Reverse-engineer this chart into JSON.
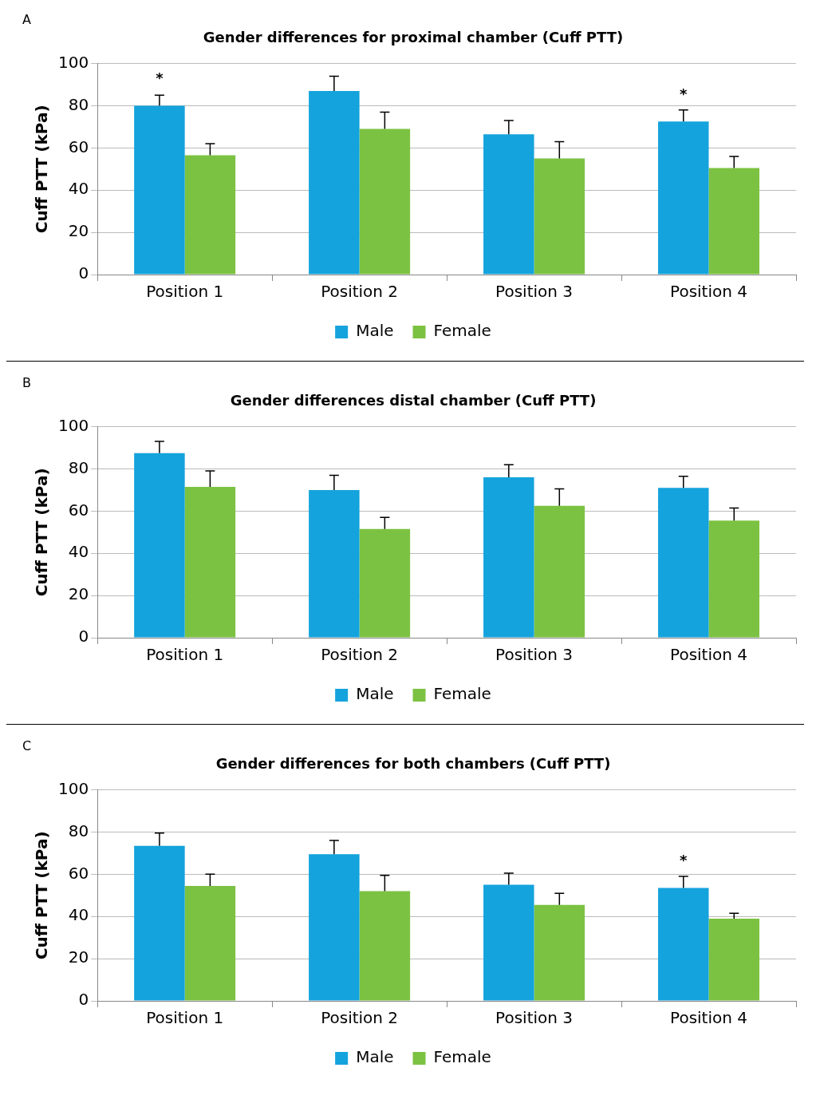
{
  "chart_data": [
    {
      "type": "bar",
      "title": "Gender differences for proximal chamber (Cuff PTT)",
      "ylabel": "Cuff PTT (kPa)",
      "categories": [
        "Position 1",
        "Position 2",
        "Position 3",
        "Position 4"
      ],
      "series": [
        {
          "name": "Male",
          "color": "#14a3dc",
          "values": [
            80,
            87,
            66.5,
            72.5
          ],
          "errors": [
            [
              80,
              85
            ],
            [
              87,
              94
            ],
            [
              66.5,
              73
            ],
            [
              72.5,
              78
            ]
          ]
        },
        {
          "name": "Female",
          "color": "#7cc242",
          "values": [
            56.5,
            69,
            55,
            50.5
          ],
          "errors": [
            [
              56.5,
              62
            ],
            [
              69,
              77
            ],
            [
              55,
              63
            ],
            [
              50.5,
              56
            ]
          ]
        }
      ],
      "ylim": [
        0,
        100
      ],
      "yticks": [
        0,
        20,
        40,
        60,
        80,
        100
      ],
      "grid": "y",
      "legend": "bottom",
      "annotations": [
        "A",
        {
          "text": "*",
          "x": "Position 1",
          "y": 80
        },
        {
          "text": "*",
          "x": "Position 4",
          "y": 72.5
        }
      ]
    },
    {
      "type": "bar",
      "title": "Gender differences distal chamber (Cuff PTT)",
      "ylabel": "Cuff PTT (kPa)",
      "categories": [
        "Position 1",
        "Position 2",
        "Position 3",
        "Position 4"
      ],
      "series": [
        {
          "name": "Male",
          "color": "#14a3dc",
          "values": [
            87.5,
            70,
            76,
            71
          ],
          "errors": [
            [
              87.5,
              93
            ],
            [
              70,
              77
            ],
            [
              76,
              82
            ],
            [
              71,
              76.5
            ]
          ]
        },
        {
          "name": "Female",
          "color": "#7cc242",
          "values": [
            71.5,
            51.5,
            62.5,
            55.5
          ],
          "errors": [
            [
              71.5,
              79
            ],
            [
              51.5,
              57
            ],
            [
              62.5,
              70.5
            ],
            [
              55.5,
              61.5
            ]
          ]
        }
      ],
      "ylim": [
        0,
        100
      ],
      "yticks": [
        0,
        20,
        40,
        60,
        80,
        100
      ],
      "grid": "y",
      "legend": "bottom",
      "annotations": [
        "B"
      ]
    },
    {
      "type": "bar",
      "title": "Gender differences for both chambers (Cuff PTT)",
      "ylabel": "Cuff PTT (kPa)",
      "categories": [
        "Position 1",
        "Position 2",
        "Position 3",
        "Position 4"
      ],
      "series": [
        {
          "name": "Male",
          "color": "#14a3dc",
          "values": [
            73.5,
            69.5,
            55,
            53.5
          ],
          "errors": [
            [
              73.5,
              79.5
            ],
            [
              69.5,
              76
            ],
            [
              55,
              60.5
            ],
            [
              53.5,
              59
            ]
          ]
        },
        {
          "name": "Female",
          "color": "#7cc242",
          "values": [
            54.5,
            52,
            45.5,
            39
          ],
          "errors": [
            [
              54.5,
              60
            ],
            [
              52,
              59.5
            ],
            [
              45.5,
              51
            ],
            [
              39,
              41.5
            ]
          ]
        }
      ],
      "ylim": [
        0,
        100
      ],
      "yticks": [
        0,
        20,
        40,
        60,
        80,
        100
      ],
      "grid": "y",
      "legend": "bottom",
      "annotations": [
        "C",
        {
          "text": "*",
          "x": "Position 4",
          "y": 53.5
        }
      ]
    }
  ]
}
